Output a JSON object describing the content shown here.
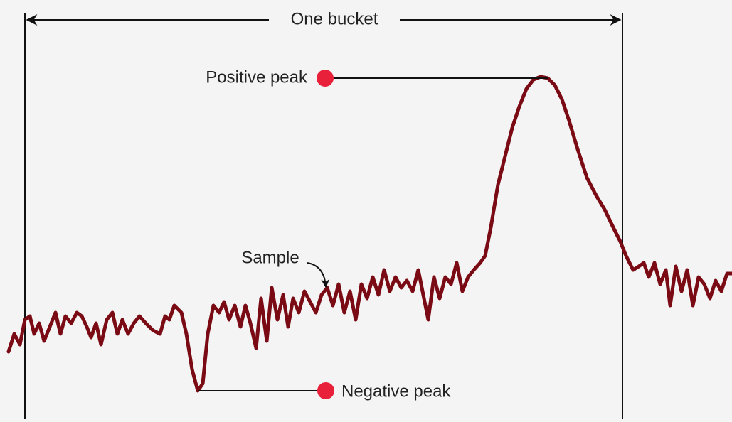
{
  "labels": {
    "bucket": "One bucket",
    "positive_peak": "Positive peak",
    "sample": "Sample",
    "negative_peak": "Negative peak"
  }
}
